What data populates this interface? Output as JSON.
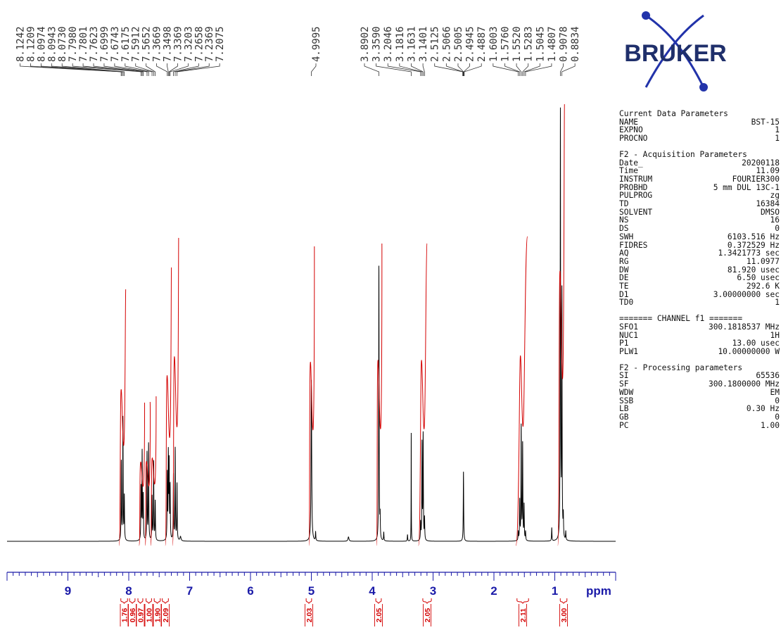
{
  "chart_data": {
    "type": "line",
    "title": "",
    "xlabel": "ppm",
    "ylabel": "",
    "xlim": [
      10.0,
      0.0
    ],
    "x_ticks": [
      "9",
      "8",
      "7",
      "6",
      "5",
      "4",
      "3",
      "2",
      "1"
    ],
    "x_tick_values": [
      9,
      8,
      7,
      6,
      5,
      4,
      3,
      2,
      1
    ],
    "unit_label": "ppm",
    "peak_labels": [
      {
        "value": "8.1242",
        "x": 8.1242
      },
      {
        "value": "8.1209",
        "x": 8.1209
      },
      {
        "value": "8.0974",
        "x": 8.0974
      },
      {
        "value": "8.0943",
        "x": 8.0943
      },
      {
        "value": "8.0730",
        "x": 8.073
      },
      {
        "value": "7.7980",
        "x": 7.798
      },
      {
        "value": "7.7801",
        "x": 7.7801
      },
      {
        "value": "7.7623",
        "x": 7.7623
      },
      {
        "value": "7.6999",
        "x": 7.6999
      },
      {
        "value": "7.6743",
        "x": 7.6743
      },
      {
        "value": "7.6175",
        "x": 7.6175
      },
      {
        "value": "7.5912",
        "x": 7.5912
      },
      {
        "value": "7.5652",
        "x": 7.5652
      },
      {
        "value": "7.3669",
        "x": 7.3669
      },
      {
        "value": "7.3498",
        "x": 7.3498
      },
      {
        "value": "7.3369",
        "x": 7.3369
      },
      {
        "value": "7.3203",
        "x": 7.3203
      },
      {
        "value": "7.2658",
        "x": 7.2658
      },
      {
        "value": "7.2369",
        "x": 7.2369
      },
      {
        "value": "7.2075",
        "x": 7.2075
      },
      {
        "value": "4.9995",
        "x": 4.9995
      },
      {
        "value": "3.8902",
        "x": 3.8902
      },
      {
        "value": "3.3590",
        "x": 3.359
      },
      {
        "value": "3.2046",
        "x": 3.2046
      },
      {
        "value": "3.1816",
        "x": 3.1816
      },
      {
        "value": "3.1631",
        "x": 3.1631
      },
      {
        "value": "3.1401",
        "x": 3.1401
      },
      {
        "value": "2.5125",
        "x": 2.5125
      },
      {
        "value": "2.5066",
        "x": 2.5066
      },
      {
        "value": "2.5005",
        "x": 2.5005
      },
      {
        "value": "2.4945",
        "x": 2.4945
      },
      {
        "value": "2.4887",
        "x": 2.4887
      },
      {
        "value": "1.6003",
        "x": 1.6003
      },
      {
        "value": "1.5760",
        "x": 1.576
      },
      {
        "value": "1.5520",
        "x": 1.552
      },
      {
        "value": "1.5283",
        "x": 1.5283
      },
      {
        "value": "1.5045",
        "x": 1.5045
      },
      {
        "value": "1.4807",
        "x": 1.4807
      },
      {
        "value": "0.9078",
        "x": 0.9078
      },
      {
        "value": "0.8834",
        "x": 0.8834
      }
    ],
    "integrals": [
      {
        "value": "1.76",
        "from": 8.16,
        "to": 8.05
      },
      {
        "value": "0.96",
        "from": 7.83,
        "to": 7.74
      },
      {
        "value": "0.97",
        "from": 7.73,
        "to": 7.65
      },
      {
        "value": "1.00",
        "from": 7.64,
        "to": 7.55
      },
      {
        "value": "1.90",
        "from": 7.4,
        "to": 7.3
      },
      {
        "value": "2.09",
        "from": 7.28,
        "to": 7.18
      },
      {
        "value": "2.03",
        "from": 5.04,
        "to": 4.95
      },
      {
        "value": "2.05",
        "from": 3.93,
        "to": 3.84
      },
      {
        "value": "2.05",
        "from": 3.24,
        "to": 3.1
      },
      {
        "value": "2.11",
        "from": 1.64,
        "to": 1.45
      },
      {
        "value": "3.00",
        "from": 0.95,
        "to": 0.84
      }
    ],
    "spectrum_peaks": [
      {
        "ppm": 8.1226,
        "height": 0.18,
        "width": 0.004
      },
      {
        "ppm": 8.0959,
        "height": 0.28,
        "width": 0.004
      },
      {
        "ppm": 8.073,
        "height": 0.1,
        "width": 0.004
      },
      {
        "ppm": 7.798,
        "height": 0.12,
        "width": 0.004
      },
      {
        "ppm": 7.7801,
        "height": 0.2,
        "width": 0.004
      },
      {
        "ppm": 7.7623,
        "height": 0.1,
        "width": 0.004
      },
      {
        "ppm": 7.6999,
        "height": 0.2,
        "width": 0.004
      },
      {
        "ppm": 7.6743,
        "height": 0.22,
        "width": 0.004
      },
      {
        "ppm": 7.6175,
        "height": 0.1,
        "width": 0.004
      },
      {
        "ppm": 7.5912,
        "height": 0.18,
        "width": 0.004
      },
      {
        "ppm": 7.5652,
        "height": 0.09,
        "width": 0.004
      },
      {
        "ppm": 7.3669,
        "height": 0.15,
        "width": 0.004
      },
      {
        "ppm": 7.3498,
        "height": 0.19,
        "width": 0.004
      },
      {
        "ppm": 7.3369,
        "height": 0.17,
        "width": 0.004
      },
      {
        "ppm": 7.3203,
        "height": 0.12,
        "width": 0.004
      },
      {
        "ppm": 7.2658,
        "height": 0.15,
        "width": 0.004
      },
      {
        "ppm": 7.2369,
        "height": 0.21,
        "width": 0.004
      },
      {
        "ppm": 7.2075,
        "height": 0.13,
        "width": 0.004
      },
      {
        "ppm": 4.9995,
        "height": 0.37,
        "width": 0.006
      },
      {
        "ppm": 4.93,
        "height": 0.02,
        "width": 0.004
      },
      {
        "ppm": 3.8902,
        "height": 0.63,
        "width": 0.004
      },
      {
        "ppm": 3.8702,
        "height": 0.05,
        "width": 0.004
      },
      {
        "ppm": 3.8102,
        "height": 0.02,
        "width": 0.004
      },
      {
        "ppm": 3.359,
        "height": 0.25,
        "width": 0.002
      },
      {
        "ppm": 3.2046,
        "height": 0.04,
        "width": 0.004
      },
      {
        "ppm": 3.1816,
        "height": 0.22,
        "width": 0.004
      },
      {
        "ppm": 3.1631,
        "height": 0.24,
        "width": 0.004
      },
      {
        "ppm": 3.1401,
        "height": 0.05,
        "width": 0.004
      },
      {
        "ppm": 2.5005,
        "height": 0.16,
        "width": 0.004
      },
      {
        "ppm": 1.6003,
        "height": 0.02,
        "width": 0.004
      },
      {
        "ppm": 1.576,
        "height": 0.09,
        "width": 0.004
      },
      {
        "ppm": 1.552,
        "height": 0.26,
        "width": 0.004
      },
      {
        "ppm": 1.5283,
        "height": 0.22,
        "width": 0.004
      },
      {
        "ppm": 1.5045,
        "height": 0.08,
        "width": 0.004
      },
      {
        "ppm": 1.4807,
        "height": 0.02,
        "width": 0.004
      },
      {
        "ppm": 1.05,
        "height": 0.03,
        "width": 0.004
      },
      {
        "ppm": 0.9078,
        "height": 0.98,
        "width": 0.004
      },
      {
        "ppm": 0.8834,
        "height": 0.56,
        "width": 0.004
      },
      {
        "ppm": 0.86,
        "height": 0.05,
        "width": 0.004
      },
      {
        "ppm": 0.82,
        "height": 0.02,
        "width": 0.004
      },
      {
        "ppm": 4.39,
        "height": 0.01,
        "width": 0.01
      },
      {
        "ppm": 3.42,
        "height": 0.015,
        "width": 0.004
      },
      {
        "ppm": 7.15,
        "height": 0.01,
        "width": 0.01
      }
    ],
    "colors": {
      "spectrum": "#000000",
      "integral": "#d40000",
      "axis": "#1a1aa8",
      "peak_label": "#333333"
    }
  },
  "logo": {
    "text": "BRUKER",
    "color": "#1f2f6b",
    "orbit_color": "#2233aa"
  },
  "params": {
    "current_title": "Current Data Parameters",
    "current": [
      {
        "k": "NAME",
        "v": "BST-15"
      },
      {
        "k": "EXPNO",
        "v": "1"
      },
      {
        "k": "PROCNO",
        "v": "1"
      }
    ],
    "acq_title": "F2 - Acquisition Parameters",
    "acq": [
      {
        "k": "Date_",
        "v": "20200118"
      },
      {
        "k": "Time",
        "v": "11.09"
      },
      {
        "k": "INSTRUM",
        "v": "FOURIER300"
      },
      {
        "k": "PROBHD",
        "v": "5 mm DUL 13C-1"
      },
      {
        "k": "PULPROG",
        "v": "zg"
      },
      {
        "k": "TD",
        "v": "16384"
      },
      {
        "k": "SOLVENT",
        "v": "DMSO"
      },
      {
        "k": "NS",
        "v": "16"
      },
      {
        "k": "DS",
        "v": "0"
      },
      {
        "k": "SWH",
        "v": "6103.516 Hz"
      },
      {
        "k": "FIDRES",
        "v": "0.372529 Hz"
      },
      {
        "k": "AQ",
        "v": "1.3421773 sec"
      },
      {
        "k": "RG",
        "v": "11.0977"
      },
      {
        "k": "DW",
        "v": "81.920 usec"
      },
      {
        "k": "DE",
        "v": "6.50 usec"
      },
      {
        "k": "TE",
        "v": "292.6 K"
      },
      {
        "k": "D1",
        "v": "3.00000000 sec"
      },
      {
        "k": "TD0",
        "v": "1"
      }
    ],
    "channel_title": "======= CHANNEL f1 =======",
    "channel": [
      {
        "k": "SFO1",
        "v": "300.1818537 MHz"
      },
      {
        "k": "NUC1",
        "v": "1H"
      },
      {
        "k": "P1",
        "v": "13.00 usec"
      },
      {
        "k": "PLW1",
        "v": "10.00000000 W"
      }
    ],
    "proc_title": "F2 - Processing parameters",
    "proc": [
      {
        "k": "SI",
        "v": "65536"
      },
      {
        "k": "SF",
        "v": "300.1800000 MHz"
      },
      {
        "k": "WDW",
        "v": "EM"
      },
      {
        "k": "SSB",
        "v": "0"
      },
      {
        "k": "LB",
        "v": "0.30 Hz"
      },
      {
        "k": "GB",
        "v": "0"
      },
      {
        "k": "PC",
        "v": "1.00"
      }
    ]
  }
}
